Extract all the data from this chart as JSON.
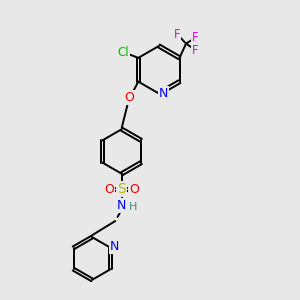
{
  "bg_color": "#e8e8e8",
  "bond_color": "#000000",
  "bond_width": 1.4,
  "atoms": {
    "Cl": {
      "color": "#00bb00",
      "fontsize": 8.5
    },
    "F": {
      "color": "#ee00ee",
      "fontsize": 8.5
    },
    "N": {
      "color": "#0000ee",
      "fontsize": 9
    },
    "O": {
      "color": "#ee0000",
      "fontsize": 9
    },
    "S": {
      "color": "#bbbb00",
      "fontsize": 10
    },
    "H": {
      "color": "#448888",
      "fontsize": 8
    }
  },
  "xlim": [
    1.5,
    8.5
  ],
  "ylim": [
    0.5,
    10.5
  ]
}
